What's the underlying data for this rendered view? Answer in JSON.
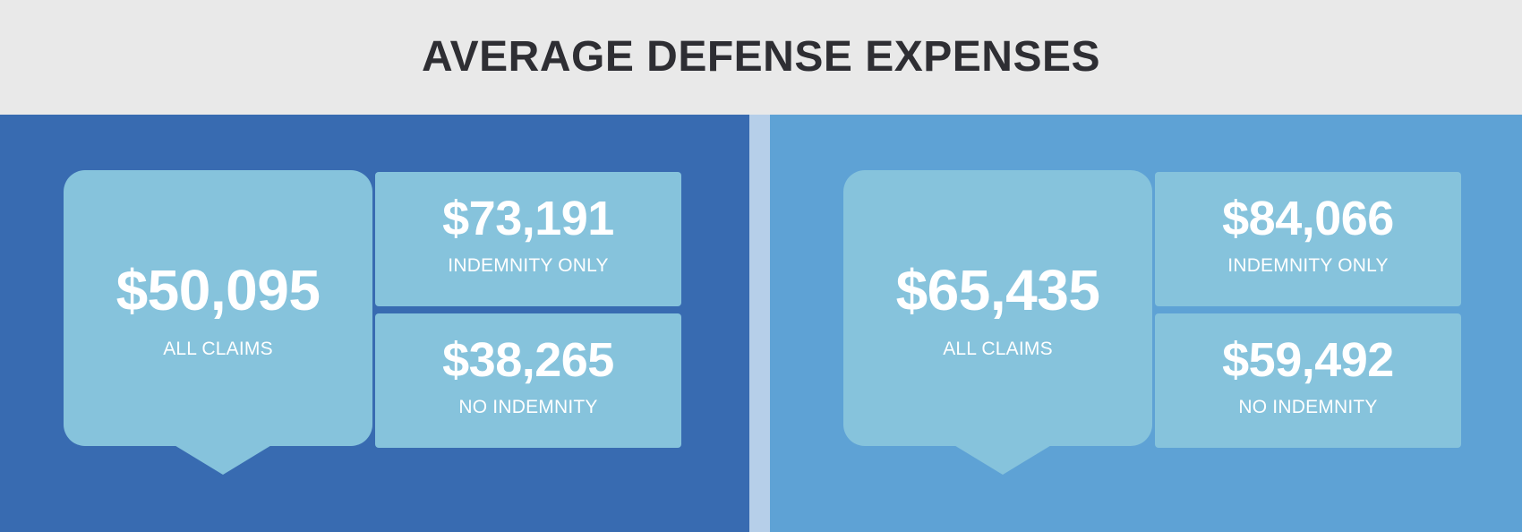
{
  "title": "AVERAGE DEFENSE EXPENSES",
  "colors": {
    "header_bg": "#e9e9e9",
    "title_text": "#2e2e33",
    "left_panel_bg": "#386bb1",
    "divider_bg": "#b6cfe9",
    "right_panel_bg": "#5ea2d5",
    "card_bg": "#86c3dc",
    "value_text": "#ffffff"
  },
  "panels": [
    {
      "all_claims": {
        "value": "$50,095",
        "label": "ALL CLAIMS"
      },
      "indemnity_only": {
        "value": "$73,191",
        "label": "INDEMNITY ONLY"
      },
      "no_indemnity": {
        "value": "$38,265",
        "label": "NO INDEMNITY"
      }
    },
    {
      "all_claims": {
        "value": "$65,435",
        "label": "ALL CLAIMS"
      },
      "indemnity_only": {
        "value": "$84,066",
        "label": "INDEMNITY ONLY"
      },
      "no_indemnity": {
        "value": "$59,492",
        "label": "NO INDEMNITY"
      }
    }
  ]
}
